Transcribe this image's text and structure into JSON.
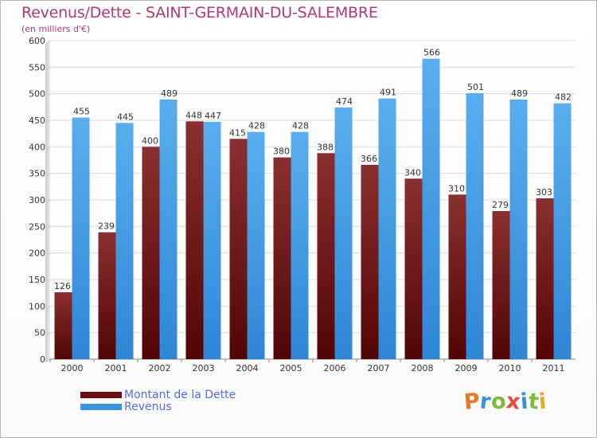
{
  "title": "Revenus/Dette - SAINT-GERMAIN-DU-SALEMBRE",
  "subtitle": "(en milliers d'€)",
  "colors": {
    "dette": "#7a1a1a",
    "revenus": "#4ea3e6",
    "title": "#b03a6b"
  },
  "legend": {
    "items": [
      {
        "label": "Montant de la Dette",
        "color": "#6a0f0f"
      },
      {
        "label": "Revenus",
        "color": "#3d92de"
      }
    ]
  },
  "logo": {
    "text": "Proxiti"
  },
  "chart_data": {
    "type": "bar",
    "categories": [
      "2000",
      "2001",
      "2002",
      "2003",
      "2004",
      "2005",
      "2006",
      "2007",
      "2008",
      "2009",
      "2010",
      "2011"
    ],
    "series": [
      {
        "name": "Montant de la Dette",
        "values": [
          126,
          239,
          400,
          448,
          415,
          380,
          388,
          366,
          340,
          310,
          279,
          303
        ]
      },
      {
        "name": "Revenus",
        "values": [
          455,
          445,
          489,
          447,
          428,
          428,
          474,
          491,
          566,
          501,
          489,
          482
        ]
      }
    ],
    "ylim": [
      0,
      600
    ],
    "yticks": [
      0,
      50,
      100,
      150,
      200,
      250,
      300,
      350,
      400,
      450,
      500,
      550,
      600
    ],
    "grid": true,
    "legend_position": "bottom-left"
  }
}
